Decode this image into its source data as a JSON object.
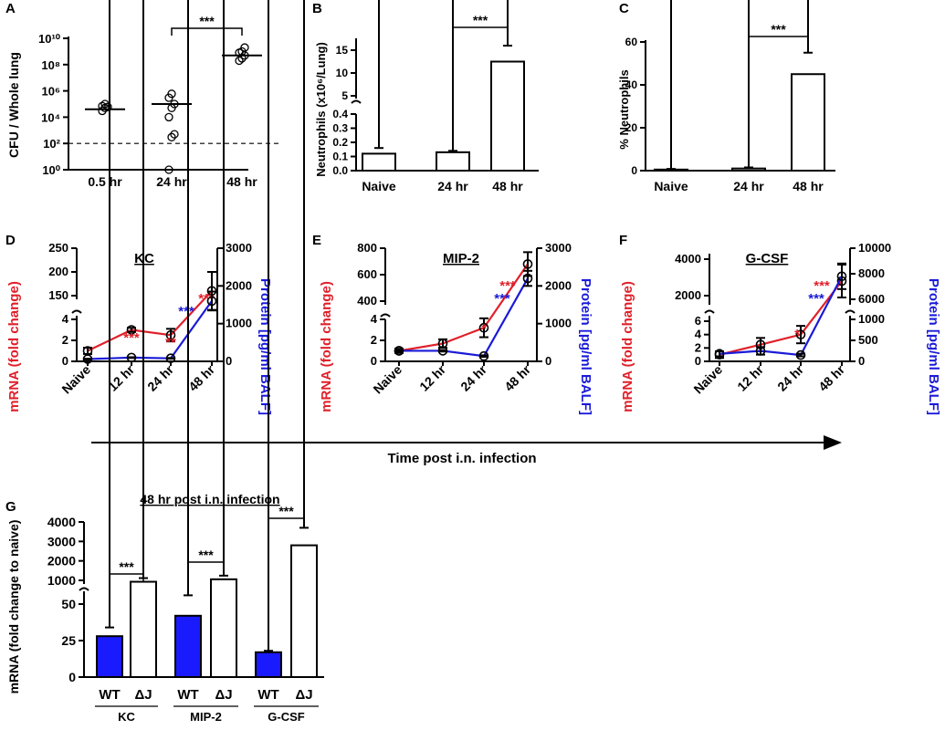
{
  "colors": {
    "ink": "#000000",
    "red": "#e0202a",
    "blue": "#1a1ad8",
    "bar_fill_wt": "#1a1aff",
    "bar_fill_dj": "#ffffff"
  },
  "panels": {
    "A": "A",
    "B": "B",
    "C": "C",
    "D": "D",
    "E": "E",
    "F": "F",
    "G": "G"
  },
  "time_axis_label": "Time post i.n. infection",
  "chart_data": [
    {
      "id": "A",
      "type": "scatter",
      "ylabel": "CFU / Whole lung",
      "yscale": "log",
      "ylim": [
        1,
        10000000000
      ],
      "yticks": [
        "10⁰",
        "10²",
        "10⁴",
        "10⁶",
        "10⁸",
        "10¹⁰"
      ],
      "categories": [
        "0.5 hr",
        "24 hr",
        "48 hr"
      ],
      "medians": [
        40000,
        100000,
        500000000
      ],
      "points": [
        [
          30000,
          50000,
          60000,
          70000,
          100000
        ],
        [
          1,
          300,
          500,
          10000,
          50000,
          100000,
          300000,
          600000
        ],
        [
          200000000,
          300000000,
          500000000,
          800000000,
          1000000000,
          2000000000
        ]
      ],
      "detection_limit": 100,
      "significance": {
        "label": "***",
        "between": [
          1,
          2
        ]
      }
    },
    {
      "id": "B",
      "type": "bar",
      "ylabel": "Neutrophils (x10⁶/Lung)",
      "categories": [
        "Naive",
        "24 hr",
        "48 hr"
      ],
      "values": [
        0.12,
        0.13,
        12.5
      ],
      "errors": [
        0.04,
        0.01,
        3.5
      ],
      "broken_axis": {
        "lower_ticks": [
          0.0,
          0.1,
          0.2,
          0.3,
          0.4
        ],
        "upper_ticks": [
          5,
          10,
          15
        ]
      },
      "significance": {
        "label": "***",
        "between": [
          1,
          2
        ]
      }
    },
    {
      "id": "C",
      "type": "bar",
      "ylabel": "% Neutrophils",
      "categories": [
        "Naive",
        "24 hr",
        "48 hr"
      ],
      "values": [
        0.5,
        1.0,
        45
      ],
      "errors": [
        0.3,
        0.5,
        10
      ],
      "yticks": [
        0,
        20,
        40,
        60
      ],
      "ylim": [
        0,
        60
      ],
      "significance": {
        "label": "***",
        "between": [
          1,
          2
        ]
      }
    },
    {
      "id": "D",
      "type": "line",
      "title": "KC",
      "ylabel_left": "mRNA (fold change)",
      "ylabel_right": "Protein [pg/ml BALF]",
      "categories": [
        "Naive",
        "12 hr",
        "24 hr",
        "48 hr"
      ],
      "left_ticks_lower": [
        0,
        2,
        4
      ],
      "left_ticks_upper": [
        150,
        200,
        250
      ],
      "right_ticks": [
        0,
        1000,
        2000,
        3000
      ],
      "series": [
        {
          "name": "mRNA",
          "color": "#e0202a",
          "values": [
            1,
            3,
            2.5,
            160
          ],
          "errors": [
            0.3,
            0.2,
            0.6,
            40
          ],
          "sig": [
            "",
            "***",
            "**",
            "***"
          ]
        },
        {
          "name": "Protein",
          "color": "#1a1ad8",
          "values": [
            60,
            100,
            80,
            1600
          ],
          "errors": [
            10,
            10,
            10,
            250
          ],
          "sig": [
            "",
            "",
            "",
            "***"
          ]
        }
      ]
    },
    {
      "id": "E",
      "type": "line",
      "title": "MIP-2",
      "ylabel_left": "mRNA (fold change)",
      "ylabel_right": "Protein [pg/ml BALF]",
      "categories": [
        "Naive",
        "12 hr",
        "24 hr",
        "48 hr"
      ],
      "left_ticks_lower": [
        0,
        2,
        4
      ],
      "left_ticks_upper": [
        400,
        600,
        800
      ],
      "right_ticks": [
        0,
        1000,
        2000,
        3000
      ],
      "series": [
        {
          "name": "mRNA",
          "color": "#e0202a",
          "values": [
            1,
            1.7,
            3.2,
            680
          ],
          "errors": [
            0.2,
            0.4,
            0.9,
            90
          ],
          "sig": [
            "",
            "",
            "*",
            "***"
          ]
        },
        {
          "name": "Protein",
          "color": "#1a1ad8",
          "values": [
            280,
            280,
            140,
            2200
          ],
          "errors": [
            20,
            20,
            20,
            200
          ],
          "sig": [
            "",
            "",
            "",
            "***"
          ]
        }
      ]
    },
    {
      "id": "F",
      "type": "line",
      "title": "G-CSF",
      "ylabel_left": "mRNA (fold change)",
      "ylabel_right": "Protein [pg/ml BALF]",
      "categories": [
        "Naive",
        "12 hr",
        "24 hr",
        "48 hr"
      ],
      "left_ticks_lower": [
        0,
        2,
        4,
        6
      ],
      "left_ticks_upper": [
        2000,
        4000
      ],
      "right_ticks_lower": [
        0,
        500,
        1000
      ],
      "right_ticks_upper": [
        6000,
        8000,
        10000
      ],
      "series": [
        {
          "name": "mRNA",
          "color": "#e0202a",
          "values": [
            1,
            2.5,
            4,
            2800
          ],
          "errors": [
            0.5,
            1.0,
            1.3,
            900
          ],
          "sig": [
            "",
            "",
            "*",
            "***"
          ]
        },
        {
          "name": "Protein",
          "color": "#1a1ad8",
          "values": [
            180,
            250,
            150,
            7800
          ],
          "errors": [
            60,
            90,
            30,
            1000
          ],
          "sig": [
            "",
            "",
            "",
            "***"
          ]
        }
      ]
    },
    {
      "id": "G",
      "type": "bar",
      "title": "48 hr post  i.n. infection",
      "ylabel": "mRNA (fold change to naive)",
      "groups": [
        "KC",
        "MIP-2",
        "G-CSF"
      ],
      "conditions": [
        "WT",
        "ΔJ"
      ],
      "values": [
        [
          28,
          160
        ],
        [
          42,
          800
        ],
        [
          17,
          2800
        ]
      ],
      "errors": [
        [
          6,
          20
        ],
        [
          14,
          30
        ],
        [
          1,
          900
        ]
      ],
      "lower_ticks": [
        0,
        25,
        50
      ],
      "upper_ticks": [
        1000,
        2000,
        3000,
        4000
      ],
      "significance": [
        "***",
        "***",
        "***"
      ]
    }
  ]
}
